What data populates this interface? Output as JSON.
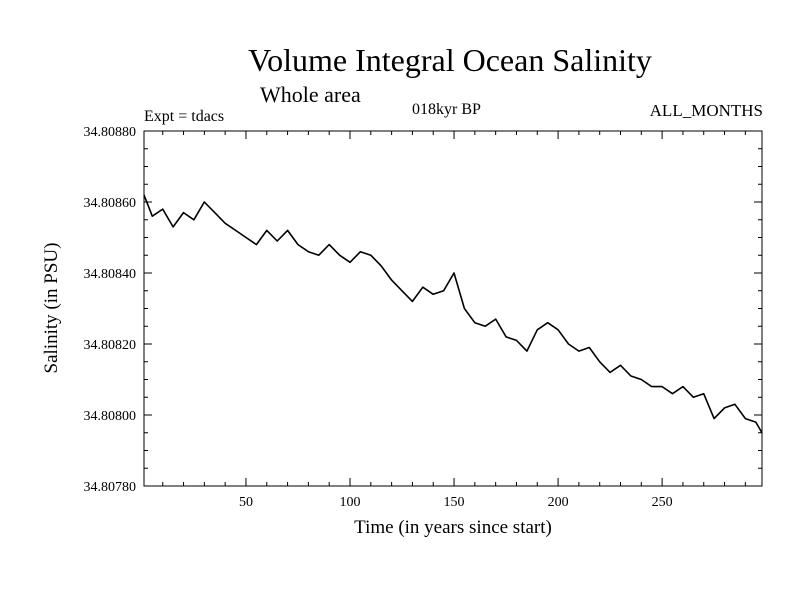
{
  "chart_data": {
    "type": "line",
    "title": "Volume Integral Ocean Salinity",
    "subtitle": "Whole area",
    "experiment": "Expt = tdacs",
    "period": "018kyr BP",
    "months": "ALL_MONTHS",
    "xlabel": "Time (in years since start)",
    "ylabel": "Salinity (in PSU)",
    "xlim": [
      1,
      298
    ],
    "ylim": [
      34.8078,
      34.8088
    ],
    "xticks": [
      50,
      100,
      150,
      200,
      250
    ],
    "xtick_labels": [
      "50",
      "100",
      "150",
      "200",
      "250"
    ],
    "yticks": [
      34.8078,
      34.808,
      34.8082,
      34.8084,
      34.8086,
      34.8088
    ],
    "ytick_labels": [
      "34.80780",
      "34.80800",
      "34.80820",
      "34.80840",
      "34.80860",
      "34.80880"
    ],
    "series": [
      {
        "name": "Salinity",
        "x": [
          1,
          5,
          10,
          15,
          20,
          25,
          30,
          35,
          40,
          45,
          50,
          55,
          60,
          65,
          70,
          75,
          80,
          85,
          90,
          95,
          100,
          105,
          110,
          115,
          120,
          125,
          130,
          135,
          140,
          145,
          150,
          155,
          160,
          165,
          170,
          175,
          180,
          185,
          190,
          195,
          200,
          205,
          210,
          215,
          220,
          225,
          230,
          235,
          240,
          245,
          250,
          255,
          260,
          265,
          270,
          275,
          280,
          285,
          290,
          295,
          298
        ],
        "values": [
          34.80862,
          34.80856,
          34.80858,
          34.80853,
          34.80857,
          34.80855,
          34.8086,
          34.80857,
          34.80854,
          34.80852,
          34.8085,
          34.80848,
          34.80852,
          34.80849,
          34.80852,
          34.80848,
          34.80846,
          34.80845,
          34.80848,
          34.80845,
          34.80843,
          34.80846,
          34.80845,
          34.80842,
          34.80838,
          34.80835,
          34.80832,
          34.80836,
          34.80834,
          34.80835,
          34.8084,
          34.8083,
          34.80826,
          34.80825,
          34.80827,
          34.80822,
          34.80821,
          34.80818,
          34.80824,
          34.80826,
          34.80824,
          34.8082,
          34.80818,
          34.80819,
          34.80815,
          34.80812,
          34.80814,
          34.80811,
          34.8081,
          34.80808,
          34.80808,
          34.80806,
          34.80808,
          34.80805,
          34.80806,
          34.80799,
          34.80802,
          34.80803,
          34.80799,
          34.80798,
          34.80795
        ]
      }
    ]
  }
}
